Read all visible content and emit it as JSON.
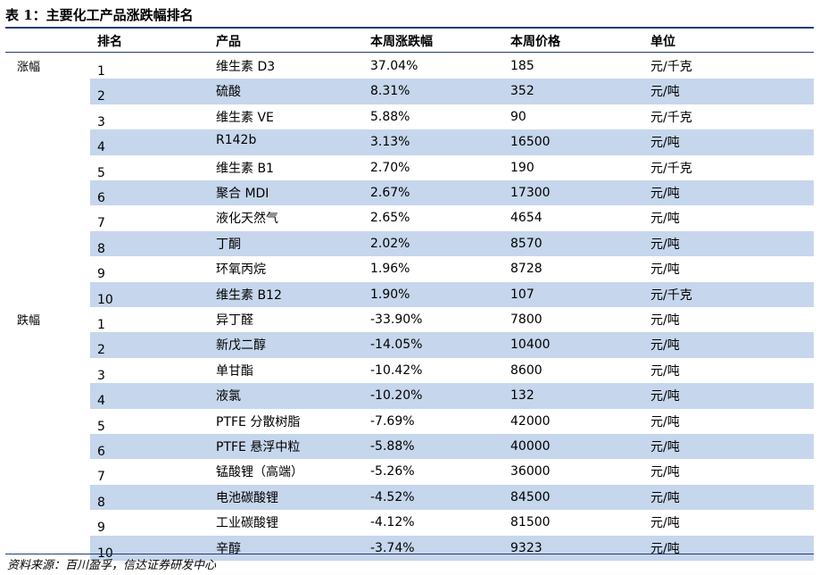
{
  "title": "表 1：主要化工产品涨跌幅排名",
  "headers": {
    "rank": "排名",
    "product": "产品",
    "change": "本周涨跌幅",
    "price": "本周价格",
    "unit": "单位"
  },
  "groups": [
    {
      "label": "涨幅",
      "rows": [
        {
          "rank": "1",
          "product": "维生素 D3",
          "change": "37.04%",
          "price": "185",
          "unit": "元/千克"
        },
        {
          "rank": "2",
          "product": "硫酸",
          "change": "8.31%",
          "price": "352",
          "unit": "元/吨"
        },
        {
          "rank": "3",
          "product": "维生素 VE",
          "change": "5.88%",
          "price": "90",
          "unit": "元/千克"
        },
        {
          "rank": "4",
          "product": "R142b",
          "change": "3.13%",
          "price": "16500",
          "unit": "元/吨"
        },
        {
          "rank": "5",
          "product": "维生素 B1",
          "change": "2.70%",
          "price": "190",
          "unit": "元/千克"
        },
        {
          "rank": "6",
          "product": "聚合 MDI",
          "change": "2.67%",
          "price": "17300",
          "unit": "元/吨"
        },
        {
          "rank": "7",
          "product": "液化天然气",
          "change": "2.65%",
          "price": "4654",
          "unit": "元/吨"
        },
        {
          "rank": "8",
          "product": "丁酮",
          "change": "2.02%",
          "price": "8570",
          "unit": "元/吨"
        },
        {
          "rank": "9",
          "product": "环氧丙烷",
          "change": "1.96%",
          "price": "8728",
          "unit": "元/吨"
        },
        {
          "rank": "10",
          "product": "维生素 B12",
          "change": "1.90%",
          "price": "107",
          "unit": "元/千克"
        }
      ]
    },
    {
      "label": "跌幅",
      "rows": [
        {
          "rank": "1",
          "product": "异丁醛",
          "change": "-33.90%",
          "price": "7800",
          "unit": "元/吨"
        },
        {
          "rank": "2",
          "product": "新戊二醇",
          "change": "-14.05%",
          "price": "10400",
          "unit": "元/吨"
        },
        {
          "rank": "3",
          "product": "单甘酯",
          "change": "-10.42%",
          "price": "8600",
          "unit": "元/吨"
        },
        {
          "rank": "4",
          "product": "液氯",
          "change": "-10.20%",
          "price": "132",
          "unit": "元/吨"
        },
        {
          "rank": "5",
          "product": "PTFE 分散树脂",
          "change": "-7.69%",
          "price": "42000",
          "unit": "元/吨"
        },
        {
          "rank": "6",
          "product": "PTFE 悬浮中粒",
          "change": "-5.88%",
          "price": "40000",
          "unit": "元/吨"
        },
        {
          "rank": "7",
          "product": "锰酸锂（高端）",
          "change": "-5.26%",
          "price": "36000",
          "unit": "元/吨"
        },
        {
          "rank": "8",
          "product": "电池碳酸锂",
          "change": "-4.52%",
          "price": "84500",
          "unit": "元/吨"
        },
        {
          "rank": "9",
          "product": "工业碳酸锂",
          "change": "-4.12%",
          "price": "81500",
          "unit": "元/吨"
        },
        {
          "rank": "10",
          "product": "辛醇",
          "change": "-3.74%",
          "price": "9323",
          "unit": "元/吨"
        }
      ]
    }
  ],
  "source": "资料来源：百川盈孚，信达证券研发中心"
}
